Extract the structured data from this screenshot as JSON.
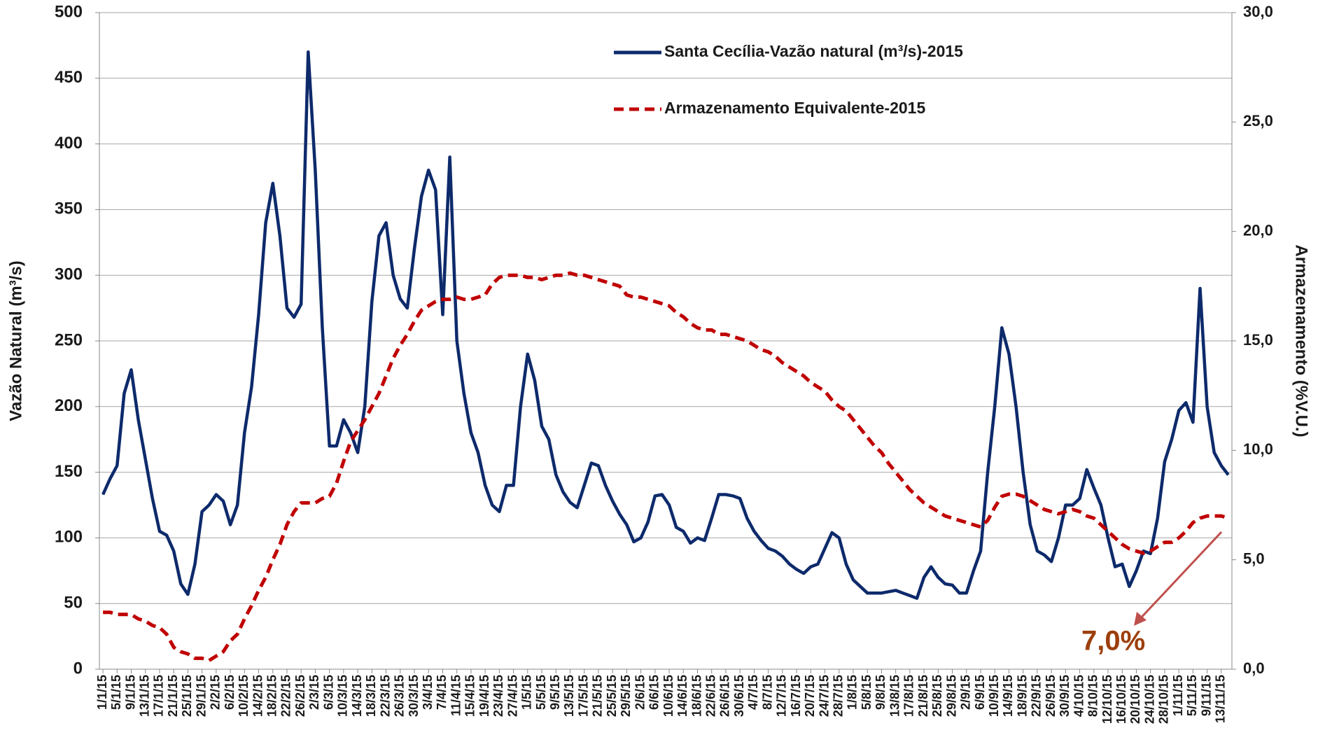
{
  "chart_data": {
    "type": "line",
    "ylabel": "Vazão Natural  (m³/s)",
    "y2label": "Armazenamento (%V.U.)",
    "annotation": "7,0%",
    "categories": [
      "1/1/15",
      null,
      "5/1/15",
      null,
      "9/1/15",
      null,
      "13/1/15",
      null,
      "17/1/15",
      null,
      "21/1/15",
      null,
      "25/1/15",
      null,
      "29/1/15",
      null,
      "2/2/15",
      null,
      "6/2/15",
      null,
      "10/2/15",
      null,
      "14/2/15",
      null,
      "18/2/15",
      null,
      "22/2/15",
      null,
      "26/2/15",
      null,
      "2/3/15",
      null,
      "6/3/15",
      null,
      "10/3/15",
      null,
      "14/3/15",
      null,
      "18/3/15",
      null,
      "22/3/15",
      null,
      "26/3/15",
      null,
      "30/3/15",
      null,
      "3/4/15",
      null,
      "7/4/15",
      null,
      "11/4/15",
      null,
      "15/4/15",
      null,
      "19/4/15",
      null,
      "23/4/15",
      null,
      "27/4/15",
      null,
      "1/5/15",
      null,
      "5/5/15",
      null,
      "9/5/15",
      null,
      "13/5/15",
      null,
      "17/5/15",
      null,
      "21/5/15",
      null,
      "25/5/15",
      null,
      "29/5/15",
      null,
      "2/6/15",
      null,
      "6/6/15",
      null,
      "10/6/15",
      null,
      "14/6/15",
      null,
      "18/6/15",
      null,
      "22/6/15",
      null,
      "26/6/15",
      null,
      "30/6/15",
      null,
      "4/7/15",
      null,
      "8/7/15",
      null,
      "12/7/15",
      null,
      "16/7/15",
      null,
      "20/7/15",
      null,
      "24/7/15",
      null,
      "28/7/15",
      null,
      "1/8/15",
      null,
      "5/8/15",
      null,
      "9/8/15",
      null,
      "13/8/15",
      null,
      "17/8/15",
      null,
      "21/8/15",
      null,
      "25/8/15",
      null,
      "29/8/15",
      null,
      "2/9/15",
      null,
      "6/9/15",
      null,
      "10/9/15",
      null,
      "14/9/15",
      null,
      "18/9/15",
      null,
      "22/9/15",
      null,
      "26/9/15",
      null,
      "30/9/15",
      null,
      "4/10/15",
      null,
      "8/10/15",
      null,
      "12/10/15",
      null,
      "16/10/15",
      null,
      "20/10/15",
      null,
      "24/10/15",
      null,
      "28/10/15",
      null,
      "1/11/15",
      null,
      "5/11/15",
      null,
      "9/11/15",
      null,
      "13/11/15",
      null
    ],
    "series": [
      {
        "name": "Santa Cecília-Vazão natural (m³/s)-2015",
        "color": "#0d2a6b",
        "dash": false,
        "values": [
          133,
          145,
          155,
          210,
          228,
          190,
          160,
          130,
          105,
          102,
          90,
          65,
          57,
          80,
          120,
          125,
          133,
          128,
          110,
          125,
          180,
          215,
          270,
          340,
          370,
          330,
          275,
          268,
          278,
          470,
          380,
          260,
          170,
          170,
          190,
          180,
          165,
          200,
          280,
          330,
          340,
          300,
          282,
          275,
          320,
          360,
          380,
          365,
          270,
          390,
          250,
          210,
          180,
          165,
          140,
          125,
          120,
          140,
          140,
          200,
          240,
          220,
          185,
          175,
          148,
          135,
          127,
          123,
          140,
          157,
          155,
          140,
          128,
          118,
          110,
          97,
          100,
          112,
          132,
          133,
          125,
          108,
          105,
          96,
          100,
          98,
          115,
          133,
          133,
          132,
          130,
          115,
          105,
          98,
          92,
          90,
          86,
          80,
          76,
          73,
          78,
          80,
          92,
          104,
          100,
          80,
          68,
          63,
          58,
          58,
          58,
          59,
          60,
          58,
          56,
          54,
          70,
          78,
          70,
          65,
          64,
          58,
          58,
          75,
          90,
          150,
          200,
          260,
          240,
          200,
          150,
          110,
          90,
          87,
          82,
          100,
          125,
          125,
          130,
          152,
          138,
          125,
          100,
          78,
          80,
          63,
          75,
          90,
          88,
          115,
          158,
          175,
          197,
          203,
          188,
          290,
          200,
          165,
          155,
          148
        ]
      },
      {
        "name": "Armazenamento Equivalente-2015",
        "color": "#c00000",
        "dash": true,
        "axis": "y2",
        "values": [
          2.6,
          2.6,
          2.5,
          2.5,
          2.5,
          2.3,
          2.2,
          2.0,
          1.9,
          1.6,
          1.0,
          0.8,
          0.7,
          0.5,
          0.5,
          0.4,
          0.6,
          0.8,
          1.3,
          1.6,
          2.3,
          2.9,
          3.6,
          4.2,
          5.0,
          5.7,
          6.6,
          7.2,
          7.6,
          7.6,
          7.6,
          7.8,
          7.9,
          8.5,
          9.5,
          10.4,
          10.9,
          11.4,
          12.0,
          12.6,
          13.4,
          14.2,
          14.8,
          15.3,
          15.9,
          16.4,
          16.6,
          16.8,
          16.9,
          16.9,
          17.0,
          16.9,
          16.9,
          17.0,
          17.1,
          17.6,
          17.9,
          18.0,
          18.0,
          18.0,
          17.9,
          17.9,
          17.8,
          17.9,
          18.0,
          18.0,
          18.1,
          18.0,
          18.0,
          17.9,
          17.8,
          17.7,
          17.6,
          17.5,
          17.1,
          17.0,
          17.0,
          16.9,
          16.8,
          16.7,
          16.6,
          16.3,
          16.1,
          15.8,
          15.6,
          15.5,
          15.5,
          15.3,
          15.3,
          15.2,
          15.1,
          15.0,
          14.8,
          14.6,
          14.5,
          14.3,
          14.0,
          13.8,
          13.6,
          13.4,
          13.1,
          12.9,
          12.7,
          12.3,
          12.0,
          11.8,
          11.4,
          11.0,
          10.6,
          10.2,
          9.9,
          9.4,
          9.0,
          8.6,
          8.2,
          7.9,
          7.6,
          7.4,
          7.2,
          7.0,
          6.9,
          6.8,
          6.7,
          6.6,
          6.5,
          6.8,
          7.4,
          7.9,
          8.0,
          8.0,
          7.9,
          7.7,
          7.5,
          7.3,
          7.2,
          7.1,
          7.2,
          7.3,
          7.2,
          7.0,
          6.9,
          6.6,
          6.3,
          6.0,
          5.7,
          5.5,
          5.4,
          5.3,
          5.4,
          5.6,
          5.8,
          5.8,
          6.0,
          6.3,
          6.7,
          6.9,
          7.0,
          7.0,
          7.0,
          6.9
        ]
      }
    ],
    "ylim": [
      0,
      500
    ],
    "yticks": [
      0,
      50,
      100,
      150,
      200,
      250,
      300,
      350,
      400,
      450,
      500
    ],
    "y2lim": [
      0,
      30
    ],
    "y2ticks": [
      {
        "value": 0,
        "label": "0,0"
      },
      {
        "value": 5,
        "label": "5,0"
      },
      {
        "value": 10,
        "label": "10,0"
      },
      {
        "value": 15,
        "label": "15,0"
      },
      {
        "value": 20,
        "label": "20,0"
      },
      {
        "value": 25,
        "label": "25,0"
      },
      {
        "value": 30,
        "label": "30,0"
      }
    ],
    "grid": true
  }
}
